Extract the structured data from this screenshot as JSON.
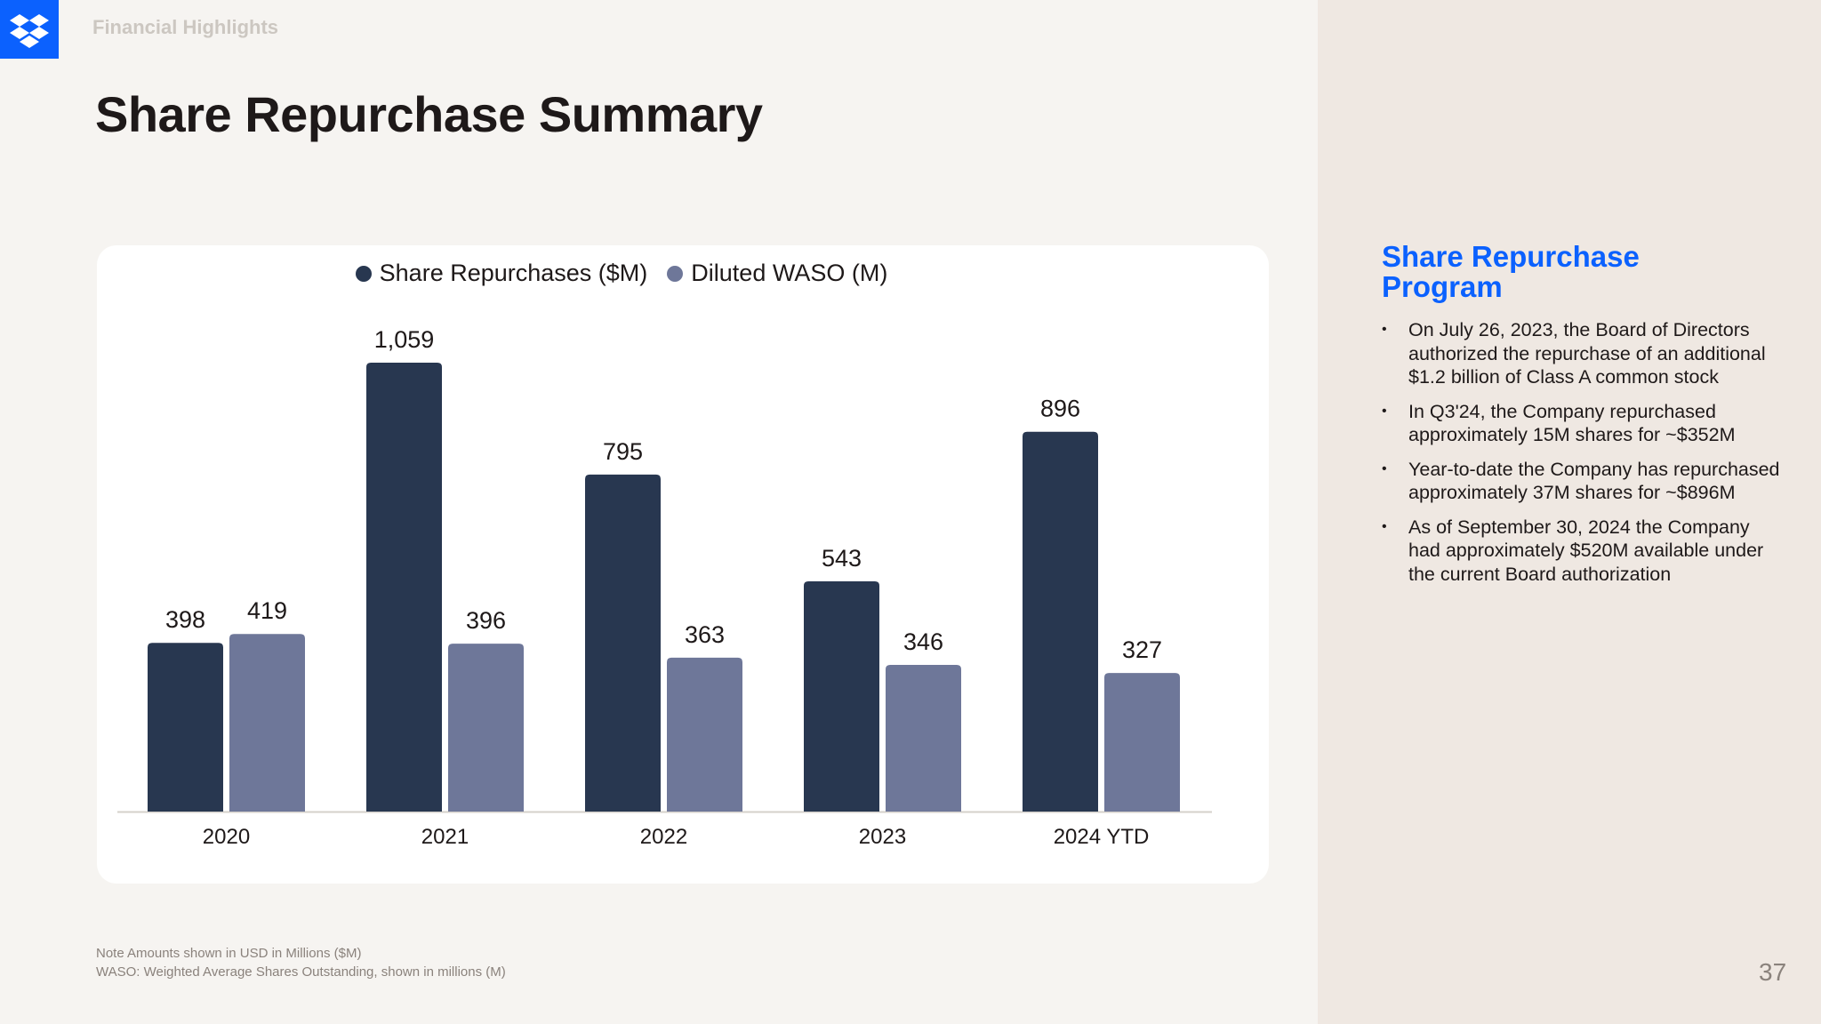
{
  "header": {
    "section_label": "Financial Highlights",
    "title": "Share Repurchase Summary"
  },
  "logo": {
    "icon": "dropbox-logo-icon",
    "color": "#0b61fe"
  },
  "chart_data": {
    "type": "bar",
    "categories": [
      "2020",
      "2021",
      "2022",
      "2023",
      "2024 YTD"
    ],
    "series": [
      {
        "name": "Share Repurchases ($M)",
        "color": "#283750",
        "values": [
          398,
          1059,
          795,
          543,
          896
        ]
      },
      {
        "name": "Diluted WASO (M)",
        "color": "#6e7799",
        "values": [
          419,
          396,
          363,
          346,
          327
        ]
      }
    ],
    "data_labels": [
      [
        "398",
        "1,059",
        "795",
        "543",
        "896"
      ],
      [
        "419",
        "396",
        "363",
        "346",
        "327"
      ]
    ],
    "title": "",
    "xlabel": "",
    "ylabel": "",
    "ylim": [
      0,
      1200
    ],
    "grid": false,
    "legend": "top-center"
  },
  "notes": {
    "line1": "Note Amounts shown in USD in Millions ($M)",
    "line2": "WASO: Weighted Average Shares Outstanding, shown in millions (M)"
  },
  "sidebar": {
    "title": "Share Repurchase Program",
    "bullets": [
      "On July 26, 2023, the Board of Directors authorized the repurchase of an additional $1.2 billion of Class A common stock",
      "In Q3'24, the Company repurchased approximately 15M shares for ~$352M",
      "Year-to-date the Company has repurchased approximately 37M shares for ~$896M",
      "As of September 30, 2024 the Company had approximately $520M available under the current Board authorization"
    ]
  },
  "page_number": "37"
}
